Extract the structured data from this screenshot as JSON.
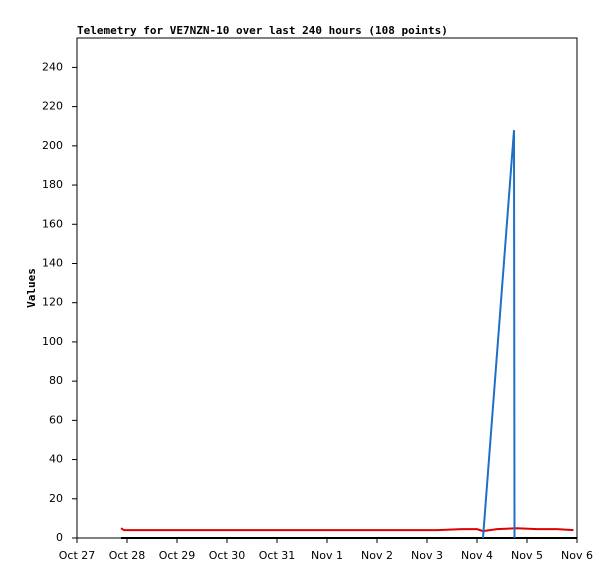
{
  "chart_data": {
    "type": "line",
    "title": "Telemetry for VE7NZN-10 over last 240 hours (108 points)",
    "y_label": "Values",
    "xlim": [
      0,
      10
    ],
    "xticks": [
      {
        "value": 0,
        "label": "Oct 27"
      },
      {
        "value": 1,
        "label": "Oct 28"
      },
      {
        "value": 2,
        "label": "Oct 29"
      },
      {
        "value": 3,
        "label": "Oct 30"
      },
      {
        "value": 4,
        "label": "Oct 31"
      },
      {
        "value": 5,
        "label": "Nov 1"
      },
      {
        "value": 6,
        "label": "Nov 2"
      },
      {
        "value": 7,
        "label": "Nov 3"
      },
      {
        "value": 8,
        "label": "Nov 4"
      },
      {
        "value": 9,
        "label": "Nov 5"
      },
      {
        "value": 10,
        "label": "Nov 6"
      }
    ],
    "ylim": [
      0,
      255
    ],
    "yticks": [
      0,
      20,
      40,
      60,
      80,
      100,
      120,
      140,
      160,
      180,
      200,
      220,
      240
    ],
    "grid": false,
    "series": [
      {
        "color": "#000000",
        "x": [
          0.88,
          10
        ],
        "values": [
          0,
          0
        ]
      },
      {
        "color": "#e00000",
        "x": [
          0.88,
          0.94,
          7.2,
          7.7,
          8.0,
          8.12,
          8.4,
          8.8,
          9.2,
          9.6,
          9.93
        ],
        "values": [
          5,
          4,
          4,
          4.5,
          4.5,
          3.5,
          4.5,
          5,
          4.5,
          4.5,
          4
        ]
      },
      {
        "color": "#1f6fc8",
        "x": [
          8.12,
          8.74,
          8.75
        ],
        "values": [
          0,
          208,
          0
        ]
      }
    ]
  }
}
